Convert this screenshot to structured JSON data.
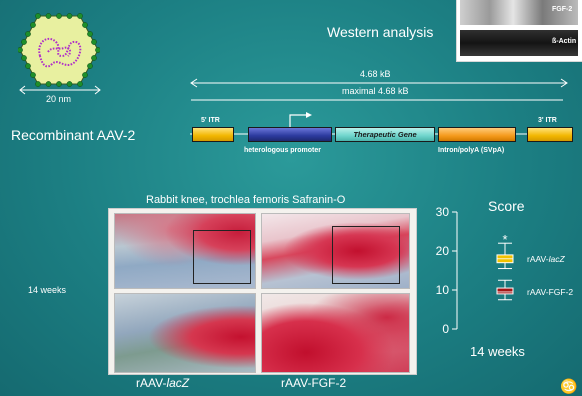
{
  "header": {
    "title": "Western analysis",
    "blot_labels": [
      "FGF-2",
      "ß-Actin"
    ]
  },
  "virus": {
    "scale_label": "20 nm"
  },
  "construct": {
    "name": "Recombinant AAV-2",
    "size_label": "4.68 kB",
    "max_label": "maximal 4.68 kB",
    "itr5_label": "5' ITR",
    "itr3_label": "3' ITR",
    "gene_label": "Therapeutic Gene",
    "promoter_label": "heterologous promoter",
    "polyA_label": "Intron/polyA (SVpA)"
  },
  "histology": {
    "title": "Rabbit knee, trochlea femoris Safranin-O",
    "timepoint": "14 weeks",
    "col_labels": [
      "rAAV-",
      "lacZ",
      "rAAV-FGF-2"
    ]
  },
  "chart_data": {
    "type": "box",
    "title": "Score",
    "xlabel": "14 weeks",
    "ylabel": "",
    "ylim": [
      0,
      30
    ],
    "yticks": [
      "30",
      "20",
      "10",
      "0"
    ],
    "significance_marker": "*",
    "series": [
      {
        "name": "rAAV-lacZ",
        "name_prefix": "rAAV-",
        "name_italic": "lacZ",
        "color": "#f2c200",
        "median": 18,
        "q1": 17,
        "q3": 19,
        "whisker_low": 15.5,
        "whisker_high": 22
      },
      {
        "name": "rAAV-FGF-2",
        "color": "#a31616",
        "median": 9.5,
        "q1": 9,
        "q3": 10.5,
        "whisker_low": 7.5,
        "whisker_high": 12.5
      }
    ]
  },
  "logo": {
    "glyph": "♋"
  }
}
